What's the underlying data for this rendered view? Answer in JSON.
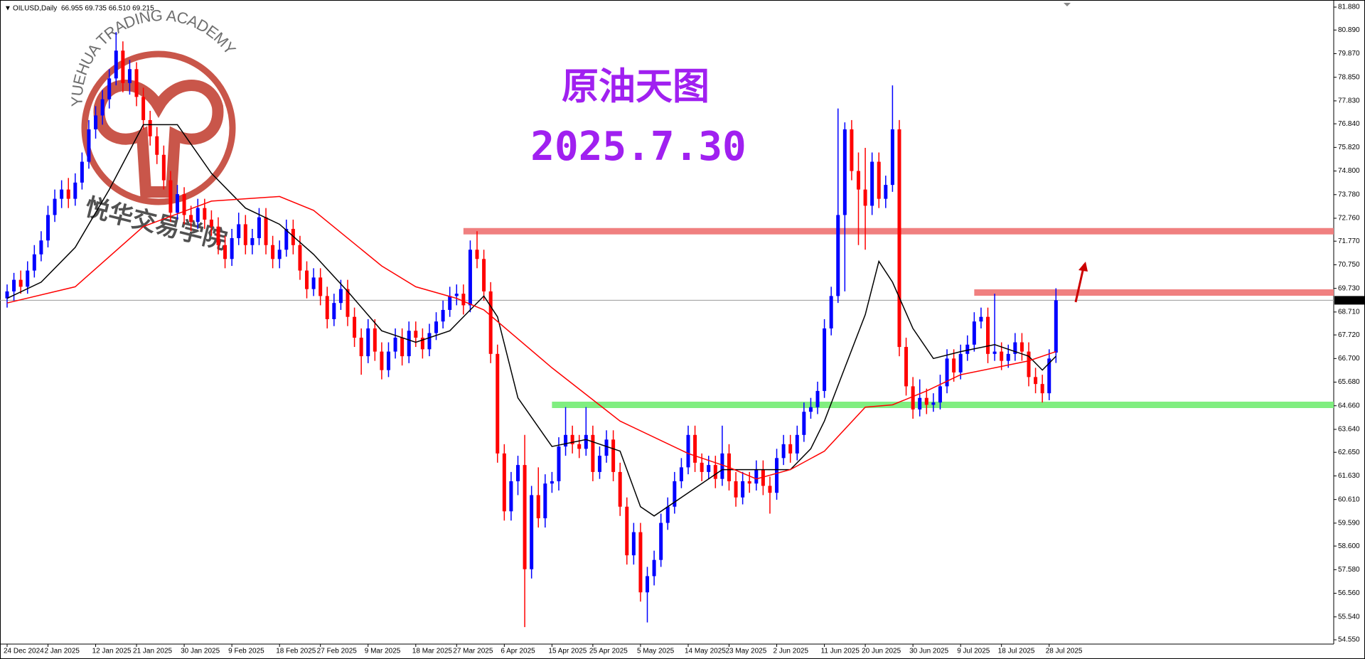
{
  "chart_data": {
    "type": "candlestick",
    "symbol": "OILUSD,Daily",
    "ohlc_text": "66.955 69.735 66.510 69.215",
    "title": "原油天图",
    "subtitle": "2025.7.30",
    "watermark_en": "YUEHUA TRADING ACADEMY",
    "watermark_cn": "悦华交易学院",
    "up_color": "#0000ff",
    "down_color": "#ff0000",
    "categories": [
      "24 Dec 2024",
      null,
      null,
      null,
      null,
      null,
      "2 Jan 2025",
      null,
      null,
      null,
      null,
      null,
      null,
      "12 Jan 2025",
      null,
      null,
      null,
      null,
      null,
      "21 Jan 2025",
      null,
      null,
      null,
      null,
      null,
      null,
      "30 Jan 2025",
      null,
      null,
      null,
      null,
      null,
      null,
      "9 Feb 2025",
      null,
      null,
      null,
      null,
      null,
      null,
      "18 Feb 2025",
      null,
      null,
      null,
      null,
      null,
      "27 Feb 2025",
      null,
      null,
      null,
      null,
      null,
      null,
      "9 Mar 2025",
      null,
      null,
      null,
      null,
      null,
      null,
      "18 Mar 2025",
      null,
      null,
      null,
      null,
      null,
      "27 Mar 2025",
      null,
      null,
      null,
      null,
      null,
      null,
      "6 Apr 2025",
      null,
      null,
      null,
      null,
      null,
      null,
      "15 Apr 2025",
      null,
      null,
      null,
      null,
      null,
      "25 Apr 2025",
      null,
      null,
      null,
      null,
      null,
      null,
      "5 May 2025",
      null,
      null,
      null,
      null,
      null,
      null,
      "14 May 2025",
      null,
      null,
      null,
      null,
      null,
      "23 May 2025",
      null,
      null,
      null,
      null,
      null,
      null,
      "2 Jun 2025",
      null,
      null,
      null,
      null,
      null,
      null,
      "11 Jun 2025",
      null,
      null,
      null,
      null,
      null,
      "20 Jun 2025",
      null,
      null,
      null,
      null,
      null,
      null,
      "30 Jun 2025",
      null,
      null,
      null,
      null,
      null,
      null,
      "9 Jul 2025",
      null,
      null,
      null,
      null,
      null,
      "18 Jul 2025",
      null,
      null,
      null,
      null,
      null,
      null,
      "28 Jul 2025",
      null
    ],
    "ohlc": [
      [
        69.3,
        69.9,
        68.9,
        69.6
      ],
      [
        69.6,
        70.4,
        69.2,
        70.1
      ],
      [
        70.1,
        70.5,
        69.5,
        69.8
      ],
      [
        69.8,
        70.9,
        69.5,
        70.5
      ],
      [
        70.5,
        71.6,
        70.2,
        71.2
      ],
      [
        71.2,
        72.2,
        70.9,
        71.8
      ],
      [
        71.8,
        73.3,
        71.5,
        72.9
      ],
      [
        72.9,
        74.0,
        72.6,
        73.6
      ],
      [
        73.6,
        74.4,
        73.2,
        74.0
      ],
      [
        74.0,
        74.5,
        73.2,
        73.6
      ],
      [
        73.6,
        74.7,
        73.3,
        74.3
      ],
      [
        74.3,
        75.6,
        74.0,
        75.2
      ],
      [
        75.2,
        77.0,
        74.9,
        76.6
      ],
      [
        76.6,
        77.6,
        76.2,
        77.2
      ],
      [
        77.2,
        78.3,
        76.8,
        77.9
      ],
      [
        77.9,
        79.2,
        77.5,
        78.8
      ],
      [
        78.8,
        80.8,
        78.5,
        80.0
      ],
      [
        80.0,
        80.4,
        78.2,
        78.6
      ],
      [
        78.6,
        79.6,
        78.1,
        79.2
      ],
      [
        79.2,
        79.5,
        77.6,
        78.0
      ],
      [
        78.0,
        78.4,
        76.6,
        77.0
      ],
      [
        77.0,
        77.4,
        75.9,
        76.3
      ],
      [
        76.3,
        76.7,
        75.1,
        75.5
      ],
      [
        75.5,
        75.9,
        74.0,
        74.4
      ],
      [
        74.4,
        74.8,
        72.6,
        73.0
      ],
      [
        73.0,
        74.2,
        72.7,
        73.8
      ],
      [
        73.8,
        74.1,
        72.5,
        72.9
      ],
      [
        72.9,
        73.3,
        72.2,
        72.6
      ],
      [
        72.6,
        73.6,
        72.3,
        73.2
      ],
      [
        73.2,
        73.6,
        72.3,
        72.7
      ],
      [
        72.7,
        73.1,
        72.0,
        72.4
      ],
      [
        72.4,
        72.8,
        71.2,
        71.6
      ],
      [
        71.6,
        72.0,
        70.6,
        71.0
      ],
      [
        71.0,
        72.3,
        70.7,
        71.9
      ],
      [
        71.9,
        73.0,
        71.6,
        72.5
      ],
      [
        72.5,
        72.9,
        71.2,
        71.6
      ],
      [
        71.6,
        72.3,
        71.2,
        71.9
      ],
      [
        71.9,
        73.2,
        71.6,
        72.8
      ],
      [
        72.8,
        73.2,
        71.2,
        71.6
      ],
      [
        71.6,
        72.0,
        70.6,
        71.0
      ],
      [
        71.0,
        71.8,
        70.6,
        71.4
      ],
      [
        71.4,
        72.7,
        71.1,
        72.3
      ],
      [
        72.3,
        72.7,
        71.2,
        71.6
      ],
      [
        71.6,
        72.0,
        70.1,
        70.5
      ],
      [
        70.5,
        70.9,
        69.3,
        69.7
      ],
      [
        69.7,
        70.6,
        69.4,
        70.2
      ],
      [
        70.2,
        70.6,
        69.0,
        69.4
      ],
      [
        69.4,
        69.8,
        68.0,
        68.4
      ],
      [
        68.4,
        69.5,
        68.1,
        69.1
      ],
      [
        69.1,
        70.1,
        68.8,
        69.7
      ],
      [
        69.7,
        70.1,
        68.1,
        68.5
      ],
      [
        68.5,
        68.9,
        67.2,
        67.6
      ],
      [
        67.6,
        68.0,
        66.0,
        66.8
      ],
      [
        66.8,
        68.4,
        66.5,
        68.0
      ],
      [
        68.0,
        68.4,
        66.6,
        67.0
      ],
      [
        67.0,
        67.4,
        65.8,
        66.2
      ],
      [
        66.2,
        67.4,
        65.9,
        67.0
      ],
      [
        67.0,
        68.0,
        66.7,
        67.6
      ],
      [
        67.6,
        68.0,
        66.4,
        66.8
      ],
      [
        66.8,
        68.3,
        66.5,
        67.9
      ],
      [
        67.9,
        68.3,
        67.2,
        67.6
      ],
      [
        67.6,
        68.0,
        66.7,
        67.1
      ],
      [
        67.1,
        68.2,
        66.8,
        67.8
      ],
      [
        67.8,
        68.7,
        67.5,
        68.3
      ],
      [
        68.3,
        69.2,
        68.0,
        68.8
      ],
      [
        68.8,
        69.8,
        68.5,
        69.4
      ],
      [
        69.4,
        69.9,
        69.0,
        69.5
      ],
      [
        69.5,
        69.9,
        68.6,
        69.0
      ],
      [
        69.0,
        71.8,
        68.7,
        71.4
      ],
      [
        71.4,
        72.2,
        70.6,
        71.0
      ],
      [
        71.0,
        71.4,
        69.2,
        69.6
      ],
      [
        69.6,
        70.0,
        66.5,
        66.9
      ],
      [
        66.9,
        67.3,
        62.2,
        62.6
      ],
      [
        62.6,
        63.0,
        59.7,
        60.1
      ],
      [
        60.1,
        61.8,
        59.7,
        61.4
      ],
      [
        61.4,
        62.5,
        60.8,
        62.1
      ],
      [
        62.1,
        63.4,
        55.1,
        57.6
      ],
      [
        57.6,
        61.2,
        57.2,
        60.8
      ],
      [
        60.8,
        62.0,
        59.4,
        59.8
      ],
      [
        59.8,
        61.7,
        59.4,
        61.3
      ],
      [
        61.3,
        61.8,
        60.9,
        61.4
      ],
      [
        61.4,
        63.3,
        61.0,
        62.9
      ],
      [
        62.9,
        64.6,
        62.5,
        63.4
      ],
      [
        63.4,
        63.8,
        62.6,
        63.0
      ],
      [
        63.0,
        63.4,
        62.4,
        62.8
      ],
      [
        62.8,
        64.6,
        62.5,
        63.4
      ],
      [
        63.4,
        63.8,
        61.4,
        61.8
      ],
      [
        61.8,
        62.9,
        61.5,
        62.5
      ],
      [
        62.5,
        63.6,
        62.2,
        63.2
      ],
      [
        63.2,
        63.6,
        61.4,
        61.8
      ],
      [
        61.8,
        62.2,
        59.9,
        60.3
      ],
      [
        60.3,
        60.7,
        57.8,
        58.2
      ],
      [
        58.2,
        59.6,
        57.8,
        59.2
      ],
      [
        59.2,
        59.6,
        56.2,
        56.6
      ],
      [
        56.6,
        57.7,
        55.3,
        57.3
      ],
      [
        57.3,
        58.4,
        56.9,
        58.0
      ],
      [
        58.0,
        60.0,
        57.7,
        59.6
      ],
      [
        59.6,
        60.7,
        59.3,
        60.3
      ],
      [
        60.3,
        61.8,
        60.0,
        61.4
      ],
      [
        61.4,
        62.4,
        61.1,
        62.0
      ],
      [
        62.0,
        63.8,
        61.7,
        63.4
      ],
      [
        63.4,
        63.8,
        61.8,
        62.2
      ],
      [
        62.2,
        62.6,
        61.4,
        61.8
      ],
      [
        61.8,
        62.5,
        61.5,
        62.1
      ],
      [
        62.1,
        62.5,
        61.1,
        61.5
      ],
      [
        61.5,
        63.8,
        61.2,
        62.6
      ],
      [
        62.6,
        63.0,
        61.0,
        61.4
      ],
      [
        61.4,
        61.8,
        60.3,
        60.7
      ],
      [
        60.7,
        61.8,
        60.4,
        61.4
      ],
      [
        61.4,
        61.8,
        60.9,
        61.3
      ],
      [
        61.3,
        62.3,
        61.0,
        61.9
      ],
      [
        61.9,
        62.3,
        60.8,
        61.2
      ],
      [
        61.2,
        61.6,
        60.0,
        60.9
      ],
      [
        60.9,
        62.8,
        60.6,
        62.4
      ],
      [
        62.4,
        63.4,
        62.1,
        63.0
      ],
      [
        63.0,
        63.4,
        62.2,
        62.6
      ],
      [
        62.6,
        63.8,
        62.3,
        63.4
      ],
      [
        63.4,
        64.8,
        63.1,
        64.4
      ],
      [
        64.4,
        65.0,
        64.1,
        64.6
      ],
      [
        64.6,
        65.7,
        64.3,
        65.3
      ],
      [
        65.3,
        68.4,
        65.0,
        68.0
      ],
      [
        68.0,
        69.8,
        67.7,
        69.4
      ],
      [
        69.4,
        77.5,
        69.1,
        72.9
      ],
      [
        72.9,
        76.9,
        69.6,
        76.6
      ],
      [
        76.6,
        77.0,
        74.4,
        74.8
      ],
      [
        74.8,
        75.6,
        71.6,
        74.0
      ],
      [
        74.0,
        75.8,
        71.4,
        73.3
      ],
      [
        73.3,
        75.6,
        72.9,
        75.2
      ],
      [
        75.2,
        75.6,
        73.2,
        73.6
      ],
      [
        73.6,
        74.6,
        73.2,
        74.2
      ],
      [
        74.2,
        78.5,
        73.9,
        76.6
      ],
      [
        76.6,
        77.0,
        66.8,
        67.2
      ],
      [
        67.2,
        67.6,
        65.1,
        65.5
      ],
      [
        65.5,
        65.9,
        64.1,
        64.5
      ],
      [
        64.5,
        65.8,
        64.2,
        65.0
      ],
      [
        65.0,
        65.4,
        64.3,
        64.7
      ],
      [
        64.7,
        65.2,
        64.4,
        64.8
      ],
      [
        64.8,
        66.0,
        64.5,
        65.5
      ],
      [
        65.5,
        67.1,
        65.2,
        66.7
      ],
      [
        66.7,
        67.1,
        65.7,
        66.1
      ],
      [
        66.1,
        67.3,
        65.8,
        66.9
      ],
      [
        66.9,
        67.7,
        66.6,
        67.3
      ],
      [
        67.3,
        68.7,
        67.0,
        68.3
      ],
      [
        68.3,
        68.9,
        68.0,
        68.5
      ],
      [
        68.5,
        68.9,
        66.5,
        66.9
      ],
      [
        66.9,
        69.5,
        66.6,
        67.0
      ],
      [
        67.0,
        67.4,
        66.2,
        66.6
      ],
      [
        66.6,
        67.3,
        66.3,
        66.9
      ],
      [
        66.9,
        67.8,
        66.6,
        67.4
      ],
      [
        67.4,
        67.8,
        66.6,
        67.0
      ],
      [
        67.0,
        67.4,
        65.5,
        65.9
      ],
      [
        65.9,
        66.3,
        65.2,
        65.6
      ],
      [
        65.6,
        66.0,
        64.8,
        65.2
      ],
      [
        65.2,
        67.1,
        64.9,
        66.7
      ],
      [
        66.955,
        69.735,
        66.51,
        69.215
      ]
    ],
    "lines": [
      {
        "color": "#000000",
        "x": [
          0,
          5,
          10,
          15,
          20,
          25,
          30,
          35,
          40,
          45,
          50,
          55,
          60,
          65,
          70,
          72,
          75,
          80,
          85,
          90,
          93,
          95,
          100,
          105,
          110,
          115,
          118,
          120,
          123,
          126,
          128,
          130,
          133,
          136,
          140,
          145,
          150,
          152,
          154
        ],
        "values": [
          69.3,
          70.0,
          71.5,
          74.0,
          76.8,
          76.8,
          74.7,
          73.2,
          72.5,
          71.2,
          69.6,
          67.9,
          67.4,
          67.9,
          69.4,
          68.5,
          65.0,
          62.9,
          63.2,
          62.7,
          60.3,
          59.9,
          60.9,
          61.9,
          61.9,
          61.9,
          62.8,
          64.0,
          66.3,
          68.6,
          70.9,
          70.0,
          68.0,
          66.7,
          67.0,
          67.3,
          66.8,
          66.2,
          66.8
        ]
      },
      {
        "color": "#ff0000",
        "x": [
          0,
          10,
          20,
          30,
          40,
          45,
          55,
          60,
          66,
          70,
          80,
          90,
          100,
          106,
          110,
          115,
          120,
          126,
          130,
          135,
          140,
          145,
          150,
          154
        ],
        "values": [
          69.1,
          69.8,
          72.4,
          73.5,
          73.7,
          73.1,
          70.7,
          69.8,
          69.3,
          68.8,
          66.3,
          64.0,
          62.6,
          62.0,
          61.5,
          61.9,
          62.7,
          64.6,
          64.7,
          65.3,
          66.0,
          66.3,
          66.6,
          67.0
        ]
      }
    ],
    "levels": [
      {
        "value": 72.2,
        "from": 67,
        "color": "#f08080"
      },
      {
        "value": 69.55,
        "from": 142,
        "color": "#f08080"
      },
      {
        "value": 64.7,
        "from": 80,
        "color": "#80ee80"
      }
    ],
    "current_price": {
      "value": 69.215,
      "label": "69.215"
    },
    "ylim": [
      54.55,
      81.88
    ],
    "yticks": [
      {
        "value": 81.88,
        "label": "81.880"
      },
      {
        "value": 80.89,
        "label": "80.890"
      },
      {
        "value": 79.87,
        "label": "79.870"
      },
      {
        "value": 78.85,
        "label": "78.850"
      },
      {
        "value": 77.83,
        "label": "77.830"
      },
      {
        "value": 76.84,
        "label": "76.840"
      },
      {
        "value": 75.82,
        "label": "75.820"
      },
      {
        "value": 74.8,
        "label": "74.800"
      },
      {
        "value": 73.78,
        "label": "73.780"
      },
      {
        "value": 72.76,
        "label": "72.760"
      },
      {
        "value": 71.77,
        "label": "71.770"
      },
      {
        "value": 70.75,
        "label": "70.750"
      },
      {
        "value": 69.73,
        "label": "69.730"
      },
      {
        "value": 68.71,
        "label": "68.710"
      },
      {
        "value": 67.72,
        "label": "67.720"
      },
      {
        "value": 66.7,
        "label": "66.700"
      },
      {
        "value": 65.68,
        "label": "65.680"
      },
      {
        "value": 64.66,
        "label": "64.660"
      },
      {
        "value": 63.64,
        "label": "63.640"
      },
      {
        "value": 62.65,
        "label": "62.650"
      },
      {
        "value": 61.63,
        "label": "61.630"
      },
      {
        "value": 60.61,
        "label": "60.610"
      },
      {
        "value": 59.59,
        "label": "59.590"
      },
      {
        "value": 58.6,
        "label": "58.600"
      },
      {
        "value": 57.58,
        "label": "57.580"
      },
      {
        "value": 56.56,
        "label": "56.560"
      },
      {
        "value": 55.54,
        "label": "55.540"
      },
      {
        "value": 54.55,
        "label": "54.550"
      }
    ]
  }
}
